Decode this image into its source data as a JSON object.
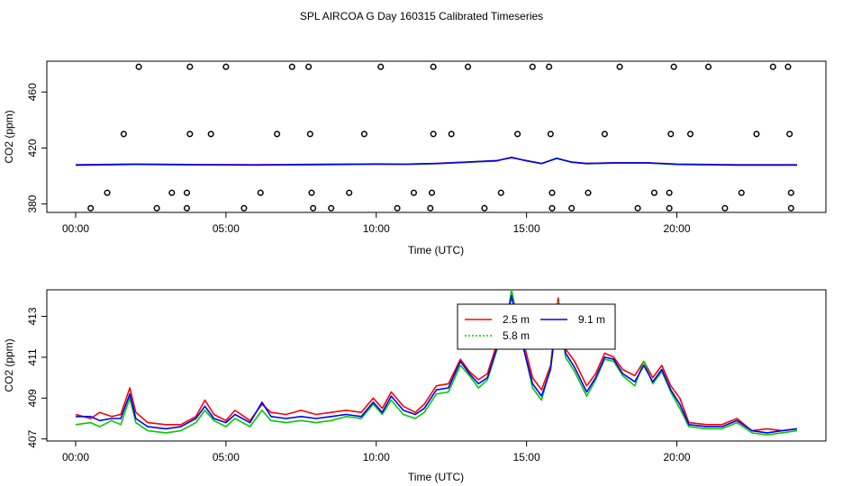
{
  "figure": {
    "title": "SPL AIRCOA G  Day 160315  Calibrated Timeseries"
  },
  "colors": {
    "s25": "#ff0000",
    "s58": "#00cc00",
    "s91": "#0000ff",
    "axis": "#000000"
  },
  "chart_data": [
    {
      "type": "line",
      "panel": "top",
      "xlabel": "Time (UTC)",
      "ylabel": "CO2 (ppm)",
      "xlim": [
        0,
        24
      ],
      "ylim": [
        374,
        482
      ],
      "xticks": [
        0,
        5,
        10,
        15,
        20
      ],
      "xtick_labels": [
        "00:00",
        "05:00",
        "10:00",
        "15:00",
        "20:00"
      ],
      "yticks": [
        380,
        420,
        460
      ],
      "ytick_labels": [
        "380",
        "420",
        "460"
      ],
      "grid": false,
      "series": [
        {
          "key": "s25",
          "x": [
            0,
            2,
            4,
            6,
            8,
            10,
            11,
            12,
            13,
            14,
            14.5,
            15,
            15.5,
            16,
            16.5,
            17,
            18,
            19,
            20,
            22,
            24
          ],
          "y": [
            408,
            408.5,
            408.2,
            408,
            408.3,
            408.6,
            408.5,
            409,
            410,
            411,
            413,
            411,
            409,
            412.5,
            410,
            409,
            409.5,
            409.5,
            408.5,
            408,
            408
          ]
        },
        {
          "key": "s58",
          "x": [
            0,
            2,
            4,
            6,
            8,
            10,
            11,
            12,
            13,
            14,
            14.5,
            15,
            15.5,
            16,
            16.5,
            17,
            18,
            19,
            20,
            22,
            24
          ],
          "y": [
            407.6,
            408.2,
            407.9,
            407.8,
            408,
            408.4,
            408.3,
            408.8,
            409.8,
            410.7,
            413.5,
            410.8,
            408.8,
            412.8,
            409.8,
            408.8,
            409.2,
            409.3,
            408.2,
            407.7,
            407.7
          ]
        },
        {
          "key": "s91",
          "x": [
            0,
            2,
            4,
            6,
            8,
            10,
            11,
            12,
            13,
            14,
            14.5,
            15,
            15.5,
            16,
            16.5,
            17,
            18,
            19,
            20,
            22,
            24
          ],
          "y": [
            407.9,
            408.4,
            408.1,
            407.9,
            408.2,
            408.5,
            408.4,
            408.9,
            409.9,
            410.9,
            413.2,
            410.9,
            408.9,
            412.6,
            409.9,
            408.9,
            409.4,
            409.4,
            408.4,
            407.9,
            407.9
          ]
        }
      ],
      "scatter": {
        "x": [
          2.1,
          3.8,
          5.0,
          7.2,
          7.75,
          10.15,
          11.9,
          13.05,
          15.2,
          15.75,
          18.1,
          19.9,
          21.05,
          23.2,
          23.7,
          1.6,
          3.8,
          4.5,
          6.7,
          7.8,
          9.6,
          11.9,
          12.5,
          14.7,
          15.8,
          17.6,
          19.8,
          20.45,
          22.65,
          23.75,
          1.05,
          3.2,
          3.7,
          6.15,
          7.85,
          9.1,
          11.25,
          11.85,
          14.15,
          15.85,
          17.05,
          19.25,
          19.75,
          22.15,
          23.8,
          0.5,
          2.7,
          3.7,
          5.6,
          7.9,
          8.5,
          10.7,
          11.8,
          13.6,
          15.85,
          16.5,
          18.7,
          19.75,
          21.6,
          23.8
        ],
        "y": [
          478,
          478,
          478,
          478,
          478,
          478,
          478,
          478,
          478,
          478,
          478,
          478,
          478,
          478,
          478,
          430,
          430,
          430,
          430,
          430,
          430,
          430,
          430,
          430,
          430,
          430,
          430,
          430,
          430,
          430,
          388,
          388,
          388,
          388,
          388,
          388,
          388,
          388,
          388,
          388,
          388,
          388,
          388,
          388,
          388,
          377,
          377,
          377,
          377,
          377,
          377,
          377,
          377,
          377,
          377,
          377,
          377,
          377,
          377,
          377
        ]
      }
    },
    {
      "type": "line",
      "panel": "bottom",
      "xlabel": "Time (UTC)",
      "ylabel": "CO2 (ppm)",
      "xlim": [
        0,
        24
      ],
      "ylim": [
        406.9,
        414.3
      ],
      "xticks": [
        0,
        5,
        10,
        15,
        20
      ],
      "xtick_labels": [
        "00:00",
        "05:00",
        "10:00",
        "15:00",
        "20:00"
      ],
      "yticks": [
        407,
        409,
        411,
        413
      ],
      "ytick_labels": [
        "407",
        "409",
        "411",
        "413"
      ],
      "grid": false,
      "legend": {
        "placement": "top-center"
      },
      "series": [
        {
          "key": "s25",
          "name": "2.5 m",
          "x": [
            0,
            0.5,
            0.8,
            1.2,
            1.5,
            1.8,
            2.0,
            2.4,
            3.0,
            3.5,
            4.0,
            4.3,
            4.6,
            5.0,
            5.3,
            5.8,
            6.2,
            6.5,
            7.0,
            7.5,
            8.0,
            8.5,
            9.0,
            9.5,
            9.9,
            10.2,
            10.5,
            10.9,
            11.3,
            11.6,
            12.0,
            12.4,
            12.8,
            13.1,
            13.4,
            13.7,
            14.0,
            14.3,
            14.5,
            14.8,
            15.2,
            15.5,
            15.8,
            16.05,
            16.3,
            16.6,
            17.0,
            17.3,
            17.6,
            17.9,
            18.2,
            18.6,
            18.9,
            19.2,
            19.5,
            19.8,
            20.1,
            20.4,
            21.0,
            21.5,
            22.0,
            22.5,
            23.0,
            23.5,
            24.0
          ],
          "y": [
            408.2,
            408.0,
            408.3,
            408.1,
            408.2,
            409.5,
            408.3,
            407.8,
            407.7,
            407.7,
            408.1,
            408.9,
            408.2,
            407.9,
            408.4,
            407.9,
            408.7,
            408.3,
            408.2,
            408.4,
            408.2,
            408.3,
            408.4,
            408.3,
            409.0,
            408.5,
            409.3,
            408.6,
            408.3,
            408.7,
            409.6,
            409.7,
            410.9,
            410.3,
            409.9,
            410.2,
            411.6,
            412.7,
            414.1,
            412.3,
            410.0,
            409.4,
            410.6,
            413.9,
            411.4,
            410.8,
            409.6,
            410.2,
            411.2,
            411.0,
            410.4,
            410.1,
            410.8,
            410.0,
            410.6,
            409.6,
            409.0,
            407.8,
            407.7,
            407.7,
            408.0,
            407.4,
            407.5,
            407.4,
            407.5
          ]
        },
        {
          "key": "s58",
          "name": "5.8 m",
          "x": [
            0,
            0.5,
            0.8,
            1.2,
            1.5,
            1.8,
            2.0,
            2.4,
            3.0,
            3.5,
            4.0,
            4.3,
            4.6,
            5.0,
            5.3,
            5.8,
            6.2,
            6.5,
            7.0,
            7.5,
            8.0,
            8.5,
            9.0,
            9.5,
            9.9,
            10.2,
            10.5,
            10.9,
            11.3,
            11.6,
            12.0,
            12.4,
            12.8,
            13.1,
            13.4,
            13.7,
            14.0,
            14.3,
            14.5,
            14.8,
            15.2,
            15.5,
            15.8,
            16.05,
            16.3,
            16.6,
            17.0,
            17.3,
            17.6,
            17.9,
            18.2,
            18.6,
            18.9,
            19.2,
            19.5,
            19.8,
            20.1,
            20.4,
            21.0,
            21.5,
            22.0,
            22.5,
            23.0,
            23.5,
            24.0
          ],
          "y": [
            407.7,
            407.8,
            407.6,
            407.9,
            407.7,
            409.0,
            407.8,
            407.4,
            407.3,
            407.4,
            407.8,
            408.4,
            407.9,
            407.6,
            408.0,
            407.6,
            408.4,
            407.9,
            407.8,
            407.9,
            407.8,
            407.9,
            408.1,
            408.0,
            408.7,
            408.2,
            408.9,
            408.2,
            408.0,
            408.3,
            409.2,
            409.3,
            410.6,
            410.1,
            409.5,
            409.9,
            411.3,
            412.4,
            414.3,
            412.1,
            409.5,
            408.9,
            410.5,
            413.7,
            411.0,
            410.3,
            409.1,
            409.9,
            410.9,
            410.8,
            410.1,
            409.6,
            410.8,
            409.7,
            410.3,
            409.3,
            408.5,
            407.6,
            407.5,
            407.5,
            407.8,
            407.3,
            407.2,
            407.3,
            407.4
          ]
        },
        {
          "key": "s91",
          "name": "9.1 m",
          "x": [
            0,
            0.5,
            0.8,
            1.2,
            1.5,
            1.8,
            2.0,
            2.4,
            3.0,
            3.5,
            4.0,
            4.3,
            4.6,
            5.0,
            5.3,
            5.8,
            6.2,
            6.5,
            7.0,
            7.5,
            8.0,
            8.5,
            9.0,
            9.5,
            9.9,
            10.2,
            10.5,
            10.9,
            11.3,
            11.6,
            12.0,
            12.4,
            12.8,
            13.1,
            13.4,
            13.7,
            14.0,
            14.3,
            14.5,
            14.8,
            15.2,
            15.5,
            15.8,
            16.05,
            16.3,
            16.6,
            17.0,
            17.3,
            17.6,
            17.9,
            18.2,
            18.6,
            18.9,
            19.2,
            19.5,
            19.8,
            20.1,
            20.4,
            21.0,
            21.5,
            22.0,
            22.5,
            23.0,
            23.5,
            24.0
          ],
          "y": [
            408.1,
            408.1,
            407.9,
            408.0,
            408.0,
            409.2,
            408.0,
            407.6,
            407.5,
            407.6,
            408.0,
            408.6,
            408.0,
            407.8,
            408.2,
            407.8,
            408.8,
            408.1,
            408.0,
            408.1,
            408.0,
            408.1,
            408.2,
            408.1,
            408.8,
            408.3,
            409.1,
            408.4,
            408.2,
            408.5,
            409.4,
            409.5,
            410.8,
            410.2,
            409.7,
            410.0,
            411.4,
            412.5,
            414.0,
            412.0,
            409.7,
            409.1,
            410.4,
            413.5,
            411.2,
            410.5,
            409.3,
            410.0,
            411.0,
            410.9,
            410.2,
            409.8,
            410.6,
            409.8,
            410.4,
            409.4,
            408.7,
            407.7,
            407.6,
            407.6,
            407.9,
            407.4,
            407.3,
            407.4,
            407.5
          ]
        }
      ]
    }
  ]
}
